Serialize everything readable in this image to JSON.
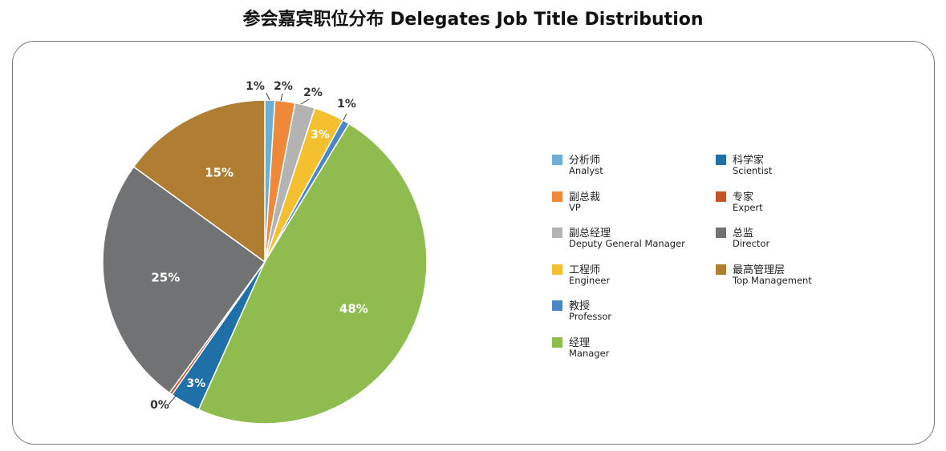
{
  "title": "参会嘉宾职位分布 Delegates Job Title Distribution",
  "chart_data": {
    "type": "pie",
    "title": "参会嘉宾职位分布 Delegates Job Title Distribution",
    "start_angle_deg": 0,
    "direction": "clockwise",
    "slices": [
      {
        "zh": "分析师",
        "en": "Analyst",
        "value": 1,
        "label": "1%",
        "color": "#6baed6",
        "label_pos": "outside"
      },
      {
        "zh": "副总裁",
        "en": "VP",
        "value": 2,
        "label": "2%",
        "color": "#f0883a",
        "label_pos": "outside"
      },
      {
        "zh": "副总经理",
        "en": "Deputy General Manager",
        "value": 2,
        "label": "2%",
        "color": "#b3b3b3",
        "label_pos": "outside"
      },
      {
        "zh": "工程师",
        "en": "Engineer",
        "value": 3,
        "label": "3%",
        "color": "#f5c030",
        "label_pos": "inside"
      },
      {
        "zh": "教授",
        "en": "Professor",
        "value": 0.7,
        "label": "1%",
        "color": "#4a86c8",
        "label_pos": "outside"
      },
      {
        "zh": "经理",
        "en": "Manager",
        "value": 48,
        "label": "48%",
        "color": "#8fbc4f",
        "label_pos": "inside"
      },
      {
        "zh": "科学家",
        "en": "Scientist",
        "value": 3,
        "label": "3%",
        "color": "#1f6fa8",
        "label_pos": "inside"
      },
      {
        "zh": "专家",
        "en": "Expert",
        "value": 0.3,
        "label": "0%",
        "color": "#c0562a",
        "label_pos": "outside"
      },
      {
        "zh": "总监",
        "en": "Director",
        "value": 25,
        "label": "25%",
        "color": "#707274",
        "label_pos": "inside"
      },
      {
        "zh": "最高管理层",
        "en": "Top Management",
        "value": 15,
        "label": "15%",
        "color": "#b07e32",
        "label_pos": "inside"
      }
    ],
    "legend_position": "right"
  },
  "legend_order": [
    {
      "zh": "分析师",
      "en": "Analyst",
      "color": "#6baed6"
    },
    {
      "zh": "副总裁",
      "en": "VP",
      "color": "#f0883a"
    },
    {
      "zh": "副总经理",
      "en": "Deputy General Manager",
      "color": "#b3b3b3"
    },
    {
      "zh": "工程师",
      "en": "Engineer",
      "color": "#f5c030"
    },
    {
      "zh": "教授",
      "en": "Professor",
      "color": "#4a86c8"
    },
    {
      "zh": "经理",
      "en": "Manager",
      "color": "#8fbc4f"
    },
    {
      "zh": "科学家",
      "en": "Scientist",
      "color": "#1f6fa8"
    },
    {
      "zh": "专家",
      "en": "Expert",
      "color": "#c0562a"
    },
    {
      "zh": "总监",
      "en": "Director",
      "color": "#707274"
    },
    {
      "zh": "最高管理层",
      "en": "Top Management",
      "color": "#b07e32"
    }
  ]
}
